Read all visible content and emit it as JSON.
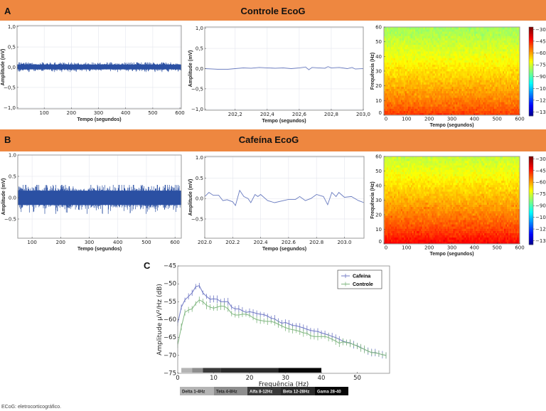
{
  "banners": [
    {
      "letter": "A",
      "title": "Controle EcoG"
    },
    {
      "letter": "B",
      "title": "Cafeína EcoG"
    }
  ],
  "panel_c_letter": "C",
  "footnote": "ECoG: eletrocorticográfico.",
  "colors": {
    "banner": "#ee8740",
    "trace_dark": "#2b50a3",
    "trace_light": "#6a7cc0",
    "cafeina": "#6f78c4",
    "controle": "#7fb67f"
  },
  "chart_data": [
    {
      "id": "a1",
      "type": "line",
      "xlabel": "Tempo (segundos)",
      "ylabel": "Amplitude (mV)",
      "xlim": [
        0,
        605
      ],
      "ylim": [
        -1.03,
        1.03
      ],
      "xticks": [
        100,
        200,
        300,
        400,
        500,
        600
      ],
      "xticklabels": [
        "100",
        "200",
        "300",
        "400",
        "500",
        "600"
      ],
      "yticks": [
        1.0,
        0.5,
        0.0,
        -0.5,
        -1.0
      ],
      "yticklabels": [
        "1,0",
        "0,5",
        "0,0",
        "−0,5",
        "−1,0"
      ],
      "grid": true,
      "signal": "dense noise",
      "amplitude_range": [
        -0.12,
        0.12
      ]
    },
    {
      "id": "a2",
      "type": "line",
      "xlabel": "Tempo (segundos)",
      "ylabel": "Amplitude (mV)",
      "xlim": [
        202.01,
        203.0
      ],
      "ylim": [
        -1.03,
        1.03
      ],
      "xticks": [
        202.2,
        202.4,
        202.6,
        202.8,
        203.0
      ],
      "xticklabels": [
        "202,2",
        "202,4",
        "202,6",
        "202,8",
        "203,0"
      ],
      "yticks": [
        1.0,
        0.5,
        0.0,
        -0.5,
        -1.0
      ],
      "yticklabels": [
        "1,0",
        "0,5",
        "0,0",
        "−0,5",
        "−1,0"
      ],
      "grid": true,
      "x": [
        202.01,
        202.06,
        202.1,
        202.15,
        202.2,
        202.25,
        202.3,
        202.35,
        202.4,
        202.45,
        202.5,
        202.55,
        202.6,
        202.64,
        202.66,
        202.68,
        202.72,
        202.76,
        202.78,
        202.8,
        202.85,
        202.9,
        202.93,
        202.95,
        203.0
      ],
      "y": [
        0.0,
        -0.01,
        -0.02,
        -0.02,
        0.0,
        0.02,
        0.01,
        0.03,
        0.02,
        0.01,
        0.02,
        0.0,
        0.02,
        0.04,
        -0.03,
        0.03,
        0.02,
        0.01,
        0.05,
        0.02,
        0.03,
        0.0,
        0.03,
        -0.01,
        0.0
      ]
    },
    {
      "id": "a3",
      "type": "heatmap",
      "xlabel": "Tempo (segundos)",
      "ylabel": "Frequência (Hz)",
      "xlim": [
        0,
        600
      ],
      "ylim": [
        0,
        60
      ],
      "xticks": [
        0,
        100,
        200,
        300,
        400,
        500,
        600
      ],
      "xticklabels": [
        "0",
        "100",
        "200",
        "300",
        "400",
        "500",
        "600"
      ],
      "yticks": [
        0,
        10,
        20,
        30,
        40,
        50,
        60
      ],
      "yticklabels": [
        "0",
        "10",
        "20",
        "30",
        "40",
        "50",
        "60"
      ],
      "colorbar": {
        "range": [
          -140,
          -27
        ],
        "ticks": [
          -30,
          -45,
          -60,
          -75,
          -90,
          -105,
          -120,
          -135
        ],
        "ticklabels": [
          "−30",
          "−45",
          "−60",
          "−75",
          "−90",
          "−105",
          "−120",
          "−135"
        ]
      },
      "power_at_0hz": -47,
      "power_at_60hz": -80
    },
    {
      "id": "b1",
      "type": "line",
      "xlabel": "Tempo (segundos)",
      "ylabel": "Amplitude (mV)",
      "xlim": [
        50,
        622
      ],
      "ylim": [
        -0.95,
        1.0
      ],
      "xticks": [
        100,
        200,
        300,
        400,
        500,
        600
      ],
      "xticklabels": [
        "100",
        "200",
        "300",
        "400",
        "500",
        "600"
      ],
      "yticks": [
        1.0,
        0.5,
        0.0,
        -0.5
      ],
      "yticklabels": [
        "1.0",
        "0.5",
        "0.0",
        "−0.5"
      ],
      "grid": true,
      "signal": "dense noise",
      "amplitude_range": [
        -0.38,
        0.3
      ]
    },
    {
      "id": "b2",
      "type": "line",
      "xlabel": "Tempo (segundos)",
      "ylabel": "Amplitude (mV)",
      "xlim": [
        202.0,
        203.14
      ],
      "ylim": [
        -0.97,
        1.03
      ],
      "xticks": [
        202.0,
        202.2,
        202.4,
        202.6,
        202.8,
        203.0
      ],
      "xticklabels": [
        "202.0",
        "202.2",
        "202.4",
        "202.6",
        "202.8",
        "203.0"
      ],
      "yticks": [
        1.0,
        0.5,
        0.0,
        -0.5
      ],
      "yticklabels": [
        "1.0",
        "0.5",
        "0.0",
        "−0.5"
      ],
      "grid": true,
      "x": [
        202.0,
        202.03,
        202.06,
        202.1,
        202.13,
        202.16,
        202.2,
        202.22,
        202.25,
        202.28,
        202.31,
        202.33,
        202.36,
        202.38,
        202.4,
        202.45,
        202.5,
        202.6,
        202.65,
        202.68,
        202.72,
        202.76,
        202.8,
        202.85,
        202.88,
        202.91,
        202.94,
        202.96,
        203.0,
        203.05,
        203.1,
        203.14
      ],
      "y": [
        0.05,
        0.15,
        0.08,
        0.08,
        -0.05,
        -0.03,
        -0.08,
        -0.17,
        0.2,
        0.05,
        0.0,
        -0.1,
        0.1,
        0.05,
        0.1,
        -0.05,
        -0.1,
        -0.02,
        -0.02,
        0.05,
        -0.05,
        0.0,
        0.1,
        0.05,
        -0.15,
        0.15,
        0.05,
        0.15,
        0.03,
        0.05,
        -0.05,
        -0.1
      ]
    },
    {
      "id": "b3",
      "type": "heatmap",
      "xlabel": "Tempo (segundos)",
      "ylabel": "Frequência (Hz)",
      "xlim": [
        0,
        600
      ],
      "ylim": [
        0,
        60
      ],
      "xticks": [
        0,
        100,
        200,
        300,
        400,
        500,
        600
      ],
      "xticklabels": [
        "0",
        "100",
        "200",
        "300",
        "400",
        "500",
        "600"
      ],
      "yticks": [
        0,
        10,
        20,
        30,
        40,
        50,
        60
      ],
      "yticklabels": [
        "0",
        "10",
        "20",
        "30",
        "40",
        "50",
        "60"
      ],
      "colorbar": {
        "range": [
          -140,
          -27
        ],
        "ticks": [
          -30,
          -45,
          -60,
          -75,
          -90,
          -105,
          -120,
          -135
        ],
        "ticklabels": [
          "−30",
          "−45",
          "−60",
          "−75",
          "−90",
          "−105",
          "−120",
          "−135"
        ]
      },
      "power_at_0hz": -40,
      "power_at_60hz": -76
    },
    {
      "id": "c",
      "type": "line",
      "xlabel": "Frequência (Hz)",
      "ylabel": "Amplitude μV²/Hz (dB)",
      "xlim": [
        0,
        59
      ],
      "ylim": [
        -75,
        -45
      ],
      "xticks": [
        0,
        10,
        20,
        30,
        40,
        50
      ],
      "xticklabels": [
        "0",
        "10",
        "20",
        "30",
        "40",
        "50"
      ],
      "yticks": [
        -45,
        -50,
        -55,
        -60,
        -65,
        -70,
        -75
      ],
      "yticklabels": [
        "−45",
        "−50",
        "−55",
        "−60",
        "−65",
        "−70",
        "−75"
      ],
      "legend_position": "top-right",
      "yerr": 1,
      "x": [
        0,
        1,
        2,
        3,
        4,
        5,
        6,
        7,
        8,
        9,
        10,
        11,
        12,
        13,
        14,
        15,
        16,
        17,
        18,
        19,
        20,
        21,
        22,
        23,
        24,
        25,
        26,
        27,
        28,
        29,
        30,
        31,
        32,
        33,
        34,
        35,
        36,
        37,
        38,
        39,
        40,
        41,
        42,
        43,
        44,
        45,
        46,
        47,
        48,
        49,
        50,
        51,
        52,
        53,
        54,
        55,
        56,
        57,
        58
      ],
      "series": [
        {
          "name": "Cafeina",
          "values": [
            -61,
            -56.5,
            -54.5,
            -53.5,
            -52.5,
            -50.8,
            -50.5,
            -52.5,
            -53.5,
            -54.3,
            -54.2,
            -54.3,
            -55,
            -55,
            -55,
            -56.5,
            -57,
            -57,
            -57.5,
            -58,
            -57.8,
            -58,
            -58.3,
            -58.5,
            -58.6,
            -59,
            -59.6,
            -59.8,
            -60.5,
            -61,
            -60.8,
            -61.2,
            -61.6,
            -61.7,
            -62,
            -62.3,
            -62.7,
            -63,
            -63.2,
            -63.3,
            -63.7,
            -64,
            -64.3,
            -64.7,
            -65,
            -65.5,
            -66,
            -66.3,
            -66.5,
            -67,
            -67.3,
            -67.8,
            -68.3,
            -68.8,
            -69.2,
            -69.2,
            -69.5,
            -69.8,
            -70
          ]
        },
        {
          "name": "Controle",
          "values": [
            -67,
            -62,
            -58,
            -57.3,
            -57,
            -55.5,
            -54.5,
            -55,
            -56,
            -56.5,
            -56.8,
            -56.5,
            -56.2,
            -56.3,
            -57,
            -58.3,
            -58.7,
            -58.7,
            -58.5,
            -58.5,
            -58.8,
            -59.5,
            -60,
            -60.2,
            -60.4,
            -60.5,
            -60.5,
            -60.8,
            -61.3,
            -61.8,
            -62.2,
            -62.6,
            -62.8,
            -63,
            -63.3,
            -63.7,
            -63.8,
            -64.5,
            -64.7,
            -64.7,
            -64.7,
            -64.7,
            -65,
            -65.5,
            -66,
            -66.6,
            -66.2,
            -66.4,
            -66.6,
            -67,
            -67.4,
            -67.9,
            -68.3,
            -68.8,
            -69.2,
            -69.3,
            -69.5,
            -69.8,
            -70
          ]
        }
      ],
      "bands": [
        {
          "label": "Delta 1-4Hz",
          "from": 1,
          "to": 4,
          "color": "#b4b4b4"
        },
        {
          "label": "Teta 4-8Hz",
          "from": 4,
          "to": 7,
          "color": "#8e8e8e"
        },
        {
          "label": "Alfa 8-12Hz",
          "from": 7,
          "to": 12,
          "color": "#3a3a3a"
        },
        {
          "label": "Beta 12-28Hz",
          "from": 12,
          "to": 28,
          "color": "#2a2a2a"
        },
        {
          "label": "Gama 28-40",
          "from": 28,
          "to": 40,
          "color": "#060606"
        }
      ]
    }
  ]
}
